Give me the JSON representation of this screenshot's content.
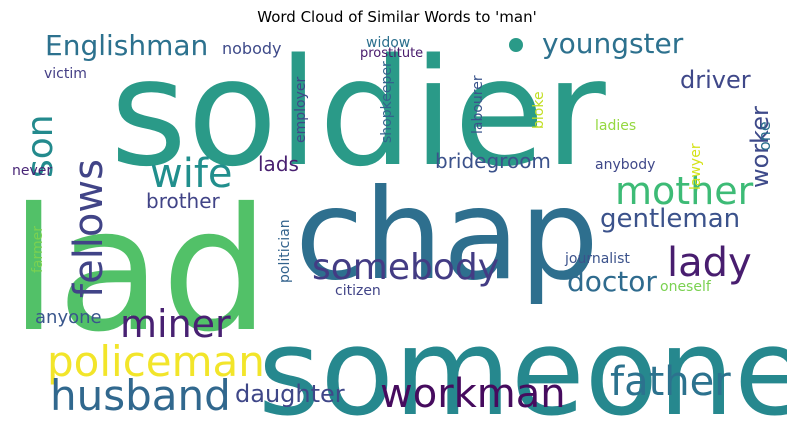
{
  "chart_data": {
    "type": "word_cloud",
    "title": "Word Cloud of Similar Words to 'man'",
    "background": "#ffffff",
    "colormap": "viridis",
    "words": [
      {
        "text": "soldier",
        "weight": 1.0,
        "color": "#2a9a88",
        "rotate": 0
      },
      {
        "text": "lad",
        "weight": 0.95,
        "color": "#52c168",
        "rotate": 0
      },
      {
        "text": "someone",
        "weight": 0.92,
        "color": "#26888e",
        "rotate": 0
      },
      {
        "text": "chap",
        "weight": 0.86,
        "color": "#2e6f8e",
        "rotate": 0
      },
      {
        "text": "policeman",
        "weight": 0.44,
        "color": "#f2e52a",
        "rotate": 0
      },
      {
        "text": "husband",
        "weight": 0.42,
        "color": "#31688e",
        "rotate": 0
      },
      {
        "text": "workman",
        "weight": 0.42,
        "color": "#460b5e",
        "rotate": 0
      },
      {
        "text": "father",
        "weight": 0.42,
        "color": "#2c728e",
        "rotate": 0
      },
      {
        "text": "mother",
        "weight": 0.4,
        "color": "#3dbb76",
        "rotate": 0
      },
      {
        "text": "wife",
        "weight": 0.4,
        "color": "#218f8d",
        "rotate": 0
      },
      {
        "text": "fellows",
        "weight": 0.38,
        "color": "#414487",
        "rotate": -90
      },
      {
        "text": "lady",
        "weight": 0.38,
        "color": "#481d6f",
        "rotate": 0
      },
      {
        "text": "somebody",
        "weight": 0.36,
        "color": "#433c84",
        "rotate": 0
      },
      {
        "text": "miner",
        "weight": 0.36,
        "color": "#482172",
        "rotate": 0
      },
      {
        "text": "son",
        "weight": 0.36,
        "color": "#238a8d",
        "rotate": -90
      },
      {
        "text": "Englishman",
        "weight": 0.28,
        "color": "#2c718e",
        "rotate": 0
      },
      {
        "text": "youngster",
        "weight": 0.28,
        "color": "#2d718e",
        "rotate": 0
      },
      {
        "text": "doctor",
        "weight": 0.28,
        "color": "#2f6b8e",
        "rotate": 0
      },
      {
        "text": "gentleman",
        "weight": 0.26,
        "color": "#3b528b",
        "rotate": 0
      },
      {
        "text": "worker",
        "weight": 0.24,
        "color": "#3e4a89",
        "rotate": -90
      },
      {
        "text": "daughter",
        "weight": 0.24,
        "color": "#3f4788",
        "rotate": 0
      },
      {
        "text": "driver",
        "weight": 0.22,
        "color": "#3f4889",
        "rotate": 0
      },
      {
        "text": "bridegroom",
        "weight": 0.2,
        "color": "#3b528b",
        "rotate": 0
      },
      {
        "text": "brother",
        "weight": 0.2,
        "color": "#414487",
        "rotate": 0
      },
      {
        "text": "lads",
        "weight": 0.2,
        "color": "#481f70",
        "rotate": 0
      },
      {
        "text": "anyone",
        "weight": 0.18,
        "color": "#39568c",
        "rotate": 0
      },
      {
        "text": "one",
        "weight": 0.16,
        "color": "#2d718e",
        "rotate": -90
      },
      {
        "text": "nobody",
        "weight": 0.16,
        "color": "#3e4a89",
        "rotate": 0
      },
      {
        "text": "employer",
        "weight": 0.15,
        "color": "#3f4889",
        "rotate": -90
      },
      {
        "text": "journalist",
        "weight": 0.15,
        "color": "#3b528b",
        "rotate": 0
      },
      {
        "text": "oneself",
        "weight": 0.15,
        "color": "#7ad151",
        "rotate": 0
      },
      {
        "text": "ladies",
        "weight": 0.15,
        "color": "#95d840",
        "rotate": 0
      },
      {
        "text": "bloke",
        "weight": 0.15,
        "color": "#c2df23",
        "rotate": -90
      },
      {
        "text": "lawyer",
        "weight": 0.15,
        "color": "#d5e21a",
        "rotate": -90
      },
      {
        "text": "anybody",
        "weight": 0.14,
        "color": "#3f4889",
        "rotate": 0
      },
      {
        "text": "citizen",
        "weight": 0.14,
        "color": "#414487",
        "rotate": 0
      },
      {
        "text": "victim",
        "weight": 0.14,
        "color": "#433e85",
        "rotate": 0
      },
      {
        "text": "never",
        "weight": 0.14,
        "color": "#482576",
        "rotate": 0
      },
      {
        "text": "shopkeeper",
        "weight": 0.14,
        "color": "#33638d",
        "rotate": -90
      },
      {
        "text": "labourer",
        "weight": 0.14,
        "color": "#3a548c",
        "rotate": -90
      },
      {
        "text": "widow",
        "weight": 0.13,
        "color": "#2d708e",
        "rotate": 0
      },
      {
        "text": "politician",
        "weight": 0.13,
        "color": "#33638d",
        "rotate": -90
      },
      {
        "text": "farmer",
        "weight": 0.13,
        "color": "#7ad151",
        "rotate": -90
      },
      {
        "text": "prostitute",
        "weight": 0.12,
        "color": "#481a6c",
        "rotate": 0
      }
    ]
  }
}
